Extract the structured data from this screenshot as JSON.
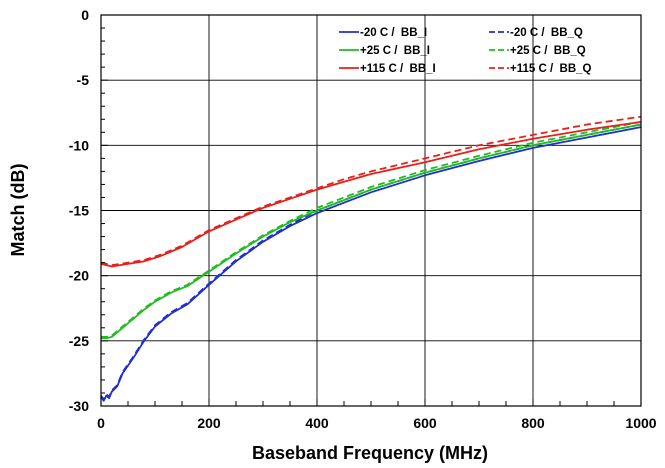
{
  "chart_data": {
    "type": "line",
    "title": "",
    "xlabel": "Baseband Frequency (MHz)",
    "ylabel": "Match (dB)",
    "xlim": [
      0,
      1000
    ],
    "ylim": [
      -30,
      0
    ],
    "xticks": [
      0,
      200,
      400,
      600,
      800,
      1000
    ],
    "yticks": [
      0,
      -5,
      -10,
      -15,
      -20,
      -25,
      -30
    ],
    "grid": true,
    "legend_position": "top-right",
    "series": [
      {
        "name": "-20 C /  BB_I",
        "color": "#1f2fd0",
        "dash": "solid",
        "points": [
          [
            0,
            -29.3
          ],
          [
            5,
            -29.6
          ],
          [
            10,
            -29.2
          ],
          [
            15,
            -29.4
          ],
          [
            20,
            -28.9
          ],
          [
            30,
            -28.5
          ],
          [
            40,
            -27.5
          ],
          [
            60,
            -26.3
          ],
          [
            80,
            -25.0
          ],
          [
            100,
            -23.9
          ],
          [
            130,
            -22.9
          ],
          [
            160,
            -22.2
          ],
          [
            200,
            -20.7
          ],
          [
            250,
            -18.9
          ],
          [
            300,
            -17.4
          ],
          [
            350,
            -16.2
          ],
          [
            400,
            -15.2
          ],
          [
            450,
            -14.4
          ],
          [
            500,
            -13.6
          ],
          [
            600,
            -12.3
          ],
          [
            700,
            -11.2
          ],
          [
            800,
            -10.2
          ],
          [
            900,
            -9.4
          ],
          [
            1000,
            -8.6
          ]
        ]
      },
      {
        "name": "-20 C /  BB_Q",
        "color": "#1f2fd0",
        "dash": "dashed",
        "points": [
          [
            0,
            -29.2
          ],
          [
            5,
            -29.5
          ],
          [
            10,
            -29.1
          ],
          [
            15,
            -29.3
          ],
          [
            20,
            -28.8
          ],
          [
            30,
            -28.4
          ],
          [
            40,
            -27.4
          ],
          [
            60,
            -26.2
          ],
          [
            80,
            -24.9
          ],
          [
            100,
            -23.8
          ],
          [
            130,
            -22.8
          ],
          [
            160,
            -22.1
          ],
          [
            200,
            -20.6
          ],
          [
            250,
            -18.8
          ],
          [
            300,
            -17.3
          ],
          [
            350,
            -16.1
          ],
          [
            400,
            -15.0
          ],
          [
            450,
            -14.2
          ],
          [
            500,
            -13.4
          ],
          [
            600,
            -12.1
          ],
          [
            700,
            -11.0
          ],
          [
            800,
            -10.0
          ],
          [
            900,
            -9.2
          ],
          [
            1000,
            -8.4
          ]
        ]
      },
      {
        "name": "+25 C /  BB_I",
        "color": "#22bb22",
        "dash": "solid",
        "points": [
          [
            0,
            -24.8
          ],
          [
            10,
            -24.8
          ],
          [
            20,
            -24.7
          ],
          [
            40,
            -24.0
          ],
          [
            60,
            -23.3
          ],
          [
            80,
            -22.6
          ],
          [
            100,
            -22.0
          ],
          [
            130,
            -21.3
          ],
          [
            160,
            -20.8
          ],
          [
            200,
            -19.7
          ],
          [
            250,
            -18.3
          ],
          [
            300,
            -17.0
          ],
          [
            350,
            -15.9
          ],
          [
            400,
            -15.0
          ],
          [
            450,
            -14.2
          ],
          [
            500,
            -13.4
          ],
          [
            600,
            -12.1
          ],
          [
            700,
            -11.0
          ],
          [
            800,
            -10.0
          ],
          [
            900,
            -9.2
          ],
          [
            1000,
            -8.4
          ]
        ]
      },
      {
        "name": "+25 C /  BB_Q",
        "color": "#22bb22",
        "dash": "dashed",
        "points": [
          [
            0,
            -24.7
          ],
          [
            10,
            -24.7
          ],
          [
            20,
            -24.6
          ],
          [
            40,
            -23.9
          ],
          [
            60,
            -23.2
          ],
          [
            80,
            -22.5
          ],
          [
            100,
            -21.9
          ],
          [
            130,
            -21.2
          ],
          [
            160,
            -20.7
          ],
          [
            200,
            -19.6
          ],
          [
            250,
            -18.2
          ],
          [
            300,
            -16.9
          ],
          [
            350,
            -15.8
          ],
          [
            400,
            -14.8
          ],
          [
            450,
            -14.0
          ],
          [
            500,
            -13.2
          ],
          [
            600,
            -11.9
          ],
          [
            700,
            -10.8
          ],
          [
            800,
            -9.8
          ],
          [
            900,
            -9.0
          ],
          [
            1000,
            -8.2
          ]
        ]
      },
      {
        "name": "+115 C /  BB_I",
        "color": "#e8201a",
        "dash": "solid",
        "points": [
          [
            0,
            -19.1
          ],
          [
            20,
            -19.3
          ],
          [
            50,
            -19.1
          ],
          [
            80,
            -18.9
          ],
          [
            110,
            -18.5
          ],
          [
            150,
            -17.8
          ],
          [
            200,
            -16.6
          ],
          [
            250,
            -15.7
          ],
          [
            300,
            -14.8
          ],
          [
            350,
            -14.1
          ],
          [
            400,
            -13.4
          ],
          [
            450,
            -12.8
          ],
          [
            500,
            -12.2
          ],
          [
            600,
            -11.3
          ],
          [
            700,
            -10.3
          ],
          [
            800,
            -9.5
          ],
          [
            900,
            -8.8
          ],
          [
            1000,
            -8.2
          ]
        ]
      },
      {
        "name": "+115 C /  BB_Q",
        "color": "#e8201a",
        "dash": "dashed",
        "points": [
          [
            0,
            -19.0
          ],
          [
            20,
            -19.2
          ],
          [
            50,
            -19.0
          ],
          [
            80,
            -18.8
          ],
          [
            110,
            -18.4
          ],
          [
            150,
            -17.7
          ],
          [
            200,
            -16.5
          ],
          [
            250,
            -15.6
          ],
          [
            300,
            -14.7
          ],
          [
            350,
            -14.0
          ],
          [
            400,
            -13.3
          ],
          [
            450,
            -12.6
          ],
          [
            500,
            -12.0
          ],
          [
            600,
            -11.0
          ],
          [
            700,
            -10.0
          ],
          [
            800,
            -9.2
          ],
          [
            900,
            -8.4
          ],
          [
            1000,
            -7.8
          ]
        ]
      }
    ]
  }
}
